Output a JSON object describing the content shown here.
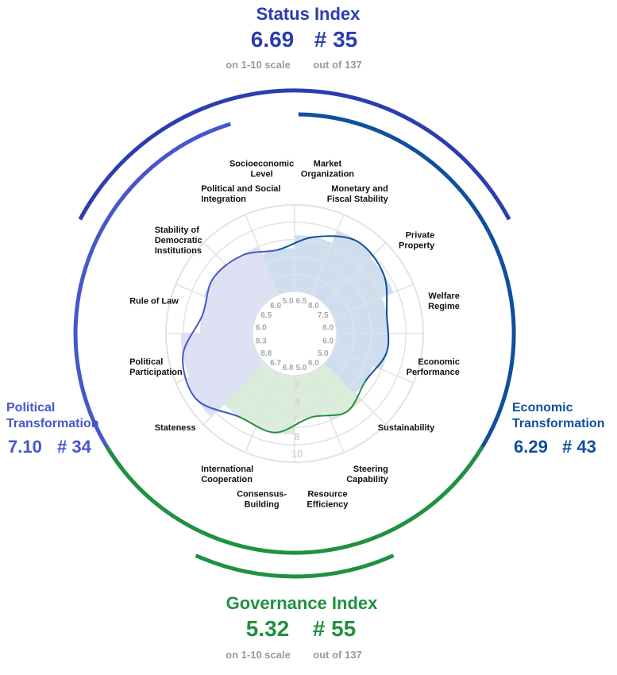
{
  "status": {
    "title": "Status Index",
    "score": "6.69",
    "rank": "# 35",
    "score_caption": "on 1-10 scale",
    "rank_caption": "out of 137"
  },
  "governance": {
    "title": "Governance Index",
    "score": "5.32",
    "rank": "# 55",
    "score_caption": "on 1-10 scale",
    "rank_caption": "out of 137"
  },
  "political": {
    "title_line1": "Political",
    "title_line2": "Transformation",
    "score": "7.10",
    "rank": "# 34"
  },
  "economic": {
    "title_line1": "Economic",
    "title_line2": "Transformation",
    "score": "6.29",
    "rank": "# 43"
  },
  "colors": {
    "status": "#2b3db0",
    "political": "#4656cc",
    "economic": "#0f4f9c",
    "governance": "#1f9140",
    "grid": "#e2e2e2",
    "tick": "#a8a8a8"
  },
  "chart_data": {
    "type": "radar",
    "scale": [
      1,
      10
    ],
    "ring_labels": [
      "2",
      "4",
      "6",
      "8",
      "10"
    ],
    "criteria": [
      {
        "label": [
          "Market",
          "Organization"
        ],
        "value": 6.5,
        "group": "economic"
      },
      {
        "label": [
          "Monetary and",
          "Fiscal Stability"
        ],
        "value": 8.0,
        "group": "economic"
      },
      {
        "label": [
          "Private",
          "Property"
        ],
        "value": 7.5,
        "group": "economic"
      },
      {
        "label": [
          "Welfare",
          "Regime"
        ],
        "value": 6.0,
        "group": "economic"
      },
      {
        "label": [
          "Economic",
          "Performance"
        ],
        "value": 6.0,
        "group": "economic"
      },
      {
        "label": [
          "Sustainability"
        ],
        "value": 5.0,
        "group": "economic"
      },
      {
        "label": [
          "Steering",
          "Capability"
        ],
        "value": 6.0,
        "group": "governance"
      },
      {
        "label": [
          "Resource",
          "Efficiency"
        ],
        "value": 5.0,
        "group": "governance"
      },
      {
        "label": [
          "Consensus-",
          "Building"
        ],
        "value": 6.8,
        "group": "governance"
      },
      {
        "label": [
          "International",
          "Cooperation"
        ],
        "value": 6.7,
        "group": "governance"
      },
      {
        "label": [
          "Stateness"
        ],
        "value": 8.8,
        "group": "political"
      },
      {
        "label": [
          "Political",
          "Participation"
        ],
        "value": 8.3,
        "group": "political"
      },
      {
        "label": [
          "Rule of Law"
        ],
        "value": 6.0,
        "group": "political"
      },
      {
        "label": [
          "Stability of",
          "Democratic",
          "Institutions"
        ],
        "value": 6.5,
        "group": "political"
      },
      {
        "label": [
          "Political and Social",
          "Integration"
        ],
        "value": 6.0,
        "group": "political"
      },
      {
        "label": [
          "Socioeconomic",
          "Level"
        ],
        "value": 5.0,
        "group": "economic"
      }
    ]
  }
}
